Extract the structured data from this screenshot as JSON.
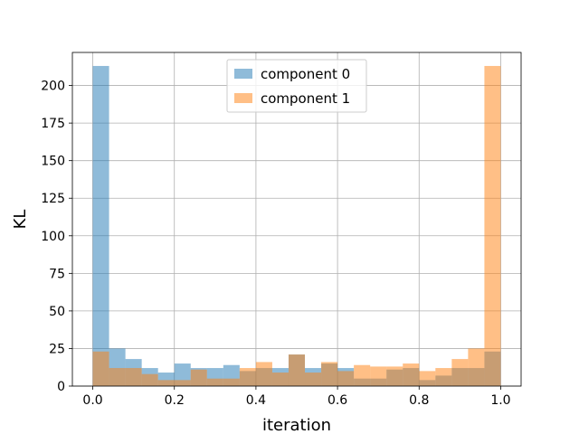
{
  "chart_data": {
    "type": "bar",
    "subtype": "histogram-overlay",
    "xlabel": "iteration",
    "ylabel": "KL",
    "xlim": [
      -0.05,
      1.05
    ],
    "ylim": [
      0,
      222
    ],
    "xticks": [
      0.0,
      0.2,
      0.4,
      0.6,
      0.8,
      1.0
    ],
    "yticks": [
      0,
      25,
      50,
      75,
      100,
      125,
      150,
      175,
      200
    ],
    "grid": true,
    "legend": "upper-center",
    "bin_start": 0.0,
    "bin_width": 0.04,
    "series": [
      {
        "name": "component 0",
        "color": "#1f77b4",
        "values": [
          213,
          25,
          18,
          12,
          9,
          15,
          12,
          12,
          14,
          10,
          12,
          12,
          21,
          12,
          15,
          12,
          5,
          5,
          11,
          12,
          4,
          7,
          12,
          12,
          23
        ]
      },
      {
        "name": "component 1",
        "color": "#ff7f0e",
        "values": [
          23,
          12,
          12,
          8,
          4,
          4,
          11,
          5,
          5,
          12,
          16,
          9,
          21,
          9,
          16,
          10,
          14,
          13,
          13,
          15,
          10,
          12,
          18,
          25,
          213
        ]
      }
    ]
  }
}
